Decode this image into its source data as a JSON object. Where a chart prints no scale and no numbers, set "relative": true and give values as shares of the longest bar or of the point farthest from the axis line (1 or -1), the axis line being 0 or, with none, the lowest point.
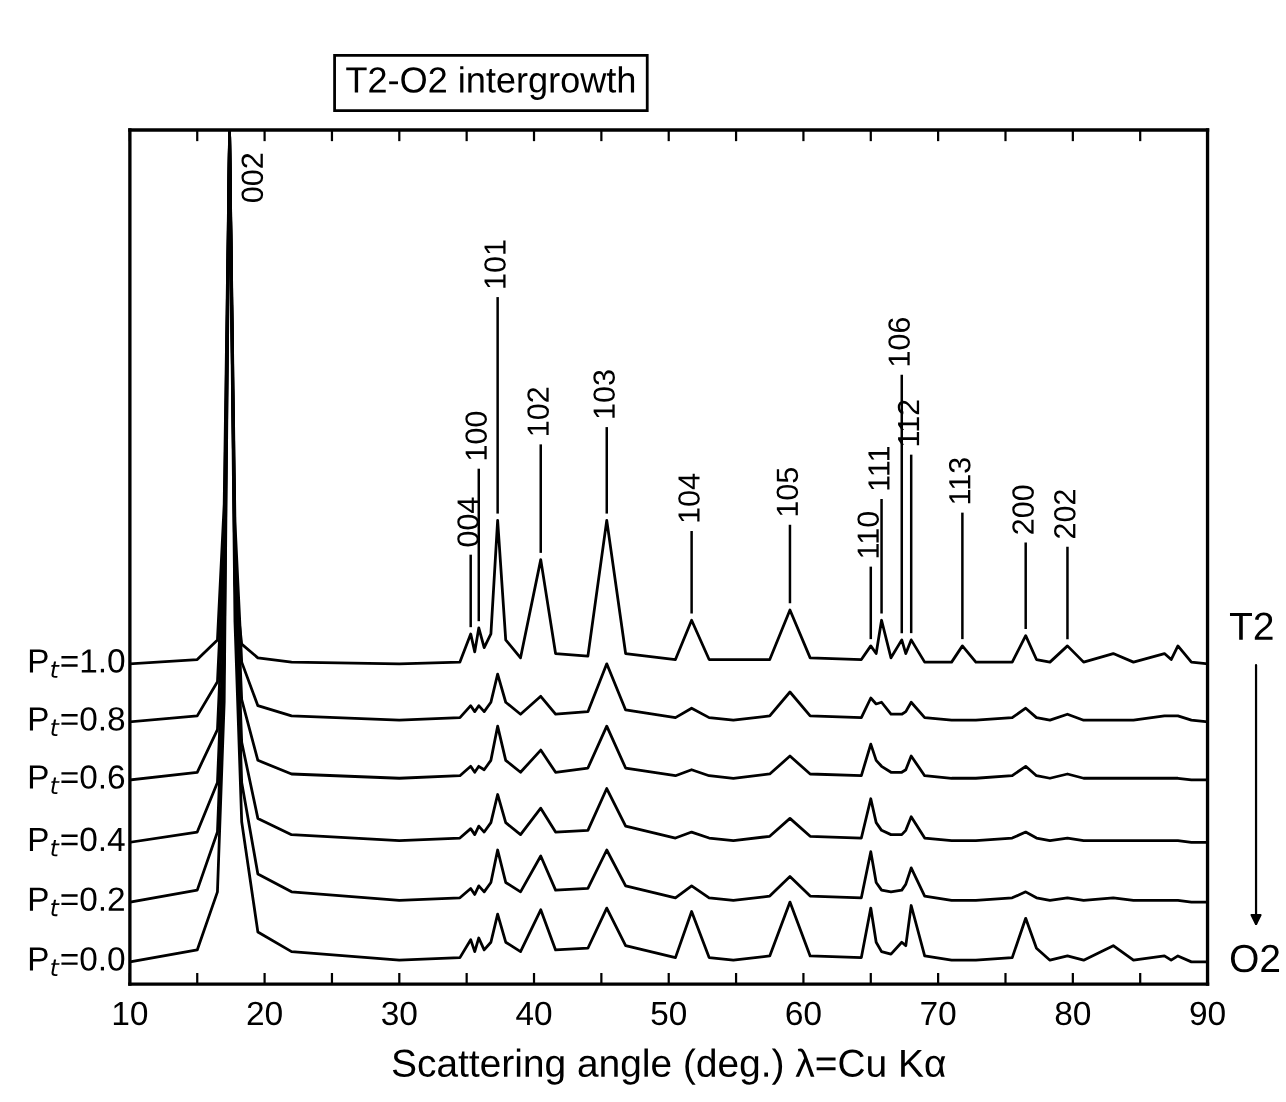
{
  "chart_data": {
    "type": "line",
    "title": "T2-O2 intergrowth",
    "xlabel": "Scattering angle (deg.) λ=Cu Kα",
    "relative": true,
    "xlim": [
      10,
      90
    ],
    "xticks": [
      10,
      {
        "value": 15,
        "label": null
      },
      20,
      {
        "value": 25,
        "label": null
      },
      30,
      {
        "value": 35,
        "label": null
      },
      40,
      {
        "value": 45,
        "label": null
      },
      50,
      {
        "value": 55,
        "label": null
      },
      60,
      {
        "value": 65,
        "label": null
      },
      70,
      {
        "value": 75,
        "label": null
      },
      80,
      {
        "value": 85,
        "label": null
      },
      90
    ],
    "x": [
      10,
      15,
      16.5,
      17.0,
      17.4,
      17.8,
      18.3,
      19.5,
      22,
      30,
      34.5,
      35.3,
      35.6,
      35.9,
      36.3,
      36.8,
      37.3,
      37.9,
      39.0,
      40.5,
      41.6,
      44.0,
      45.4,
      46.8,
      50.5,
      51.7,
      53.0,
      54.8,
      57.5,
      59.0,
      60.5,
      64.3,
      65.0,
      65.4,
      65.8,
      66.5,
      67.3,
      67.6,
      68.0,
      69.0,
      71.0,
      71.8,
      72.8,
      75.5,
      76.5,
      77.3,
      78.3,
      79.6,
      80.8,
      83.0,
      84.5,
      86.8,
      87.3,
      87.8,
      88.8,
      90
    ],
    "series": [
      {
        "name": "P$_{t}$=1.0",
        "color": "#000000",
        "values": [
          0.375,
          0.38,
          0.403,
          0.562,
          1.0,
          0.469,
          0.398,
          0.382,
          0.377,
          0.375,
          0.377,
          0.41,
          0.389,
          0.417,
          0.394,
          0.41,
          0.543,
          0.403,
          0.382,
          0.497,
          0.387,
          0.384,
          0.543,
          0.387,
          0.38,
          0.426,
          0.38,
          0.38,
          0.38,
          0.438,
          0.382,
          0.38,
          0.396,
          0.387,
          0.426,
          0.382,
          0.403,
          0.387,
          0.403,
          0.377,
          0.377,
          0.396,
          0.377,
          0.377,
          0.408,
          0.38,
          0.377,
          0.396,
          0.377,
          0.387,
          0.377,
          0.387,
          0.38,
          0.396,
          0.377,
          0.375
        ]
      },
      {
        "name": "P$_{t}$=0.8",
        "color": "#000000",
        "values": [
          0.307,
          0.314,
          0.354,
          0.518,
          1.0,
          0.541,
          0.377,
          0.326,
          0.314,
          0.309,
          0.312,
          0.326,
          0.319,
          0.326,
          0.319,
          0.33,
          0.363,
          0.33,
          0.316,
          0.337,
          0.316,
          0.319,
          0.375,
          0.321,
          0.312,
          0.323,
          0.312,
          0.309,
          0.314,
          0.342,
          0.314,
          0.312,
          0.335,
          0.328,
          0.33,
          0.316,
          0.316,
          0.319,
          0.33,
          0.312,
          0.309,
          0.309,
          0.309,
          0.312,
          0.323,
          0.312,
          0.309,
          0.316,
          0.309,
          0.309,
          0.309,
          0.314,
          0.314,
          0.314,
          0.309,
          0.307
        ]
      },
      {
        "name": "P$_{t}$=0.6",
        "color": "#000000",
        "values": [
          0.239,
          0.248,
          0.298,
          0.473,
          1.0,
          0.52,
          0.333,
          0.262,
          0.246,
          0.241,
          0.244,
          0.255,
          0.248,
          0.255,
          0.251,
          0.262,
          0.302,
          0.262,
          0.248,
          0.274,
          0.248,
          0.253,
          0.302,
          0.253,
          0.244,
          0.251,
          0.244,
          0.241,
          0.246,
          0.267,
          0.246,
          0.244,
          0.281,
          0.262,
          0.255,
          0.248,
          0.248,
          0.251,
          0.267,
          0.244,
          0.241,
          0.241,
          0.241,
          0.244,
          0.255,
          0.244,
          0.241,
          0.246,
          0.241,
          0.241,
          0.241,
          0.241,
          0.241,
          0.241,
          0.239,
          0.239
        ]
      },
      {
        "name": "P$_{t}$=0.4",
        "color": "#000000",
        "values": [
          0.166,
          0.178,
          0.236,
          0.423,
          1.0,
          0.494,
          0.283,
          0.194,
          0.175,
          0.168,
          0.171,
          0.182,
          0.175,
          0.185,
          0.178,
          0.189,
          0.222,
          0.189,
          0.175,
          0.206,
          0.178,
          0.18,
          0.229,
          0.185,
          0.171,
          0.178,
          0.171,
          0.168,
          0.173,
          0.194,
          0.173,
          0.171,
          0.217,
          0.189,
          0.18,
          0.175,
          0.175,
          0.18,
          0.196,
          0.171,
          0.168,
          0.168,
          0.168,
          0.171,
          0.178,
          0.171,
          0.168,
          0.171,
          0.168,
          0.168,
          0.168,
          0.168,
          0.168,
          0.168,
          0.166,
          0.166
        ]
      },
      {
        "name": "P$_{t}$=0.2",
        "color": "#000000",
        "values": [
          0.096,
          0.11,
          0.178,
          0.377,
          1.0,
          0.47,
          0.236,
          0.129,
          0.108,
          0.098,
          0.101,
          0.112,
          0.105,
          0.115,
          0.108,
          0.119,
          0.157,
          0.119,
          0.108,
          0.15,
          0.11,
          0.112,
          0.157,
          0.115,
          0.101,
          0.115,
          0.101,
          0.098,
          0.103,
          0.126,
          0.103,
          0.101,
          0.155,
          0.119,
          0.11,
          0.108,
          0.11,
          0.117,
          0.136,
          0.103,
          0.098,
          0.098,
          0.098,
          0.101,
          0.108,
          0.101,
          0.098,
          0.101,
          0.098,
          0.101,
          0.098,
          0.098,
          0.098,
          0.098,
          0.096,
          0.096
        ]
      },
      {
        "name": "P$_{t}$=0.0",
        "color": "#000000",
        "values": [
          0.026,
          0.04,
          0.108,
          0.33,
          1.0,
          0.424,
          0.19,
          0.061,
          0.038,
          0.028,
          0.031,
          0.052,
          0.038,
          0.054,
          0.04,
          0.049,
          0.082,
          0.049,
          0.038,
          0.087,
          0.04,
          0.042,
          0.089,
          0.045,
          0.031,
          0.085,
          0.031,
          0.028,
          0.033,
          0.096,
          0.033,
          0.031,
          0.089,
          0.049,
          0.038,
          0.035,
          0.049,
          0.045,
          0.092,
          0.033,
          0.028,
          0.028,
          0.028,
          0.031,
          0.077,
          0.042,
          0.028,
          0.033,
          0.028,
          0.045,
          0.028,
          0.033,
          0.028,
          0.033,
          0.026,
          0.026
        ]
      }
    ],
    "annotations": [
      {
        "text": "002",
        "x": 17.4,
        "y": 1.0
      },
      {
        "text": "004",
        "x": 35.3,
        "y": 0.41
      },
      {
        "text": "100",
        "x": 35.9,
        "y": 0.417
      },
      {
        "text": "101",
        "x": 37.3,
        "y": 0.543
      },
      {
        "text": "102",
        "x": 40.5,
        "y": 0.497
      },
      {
        "text": "103",
        "x": 45.4,
        "y": 0.543
      },
      {
        "text": "104",
        "x": 51.7,
        "y": 0.426
      },
      {
        "text": "105",
        "x": 59.0,
        "y": 0.438
      },
      {
        "text": "110",
        "x": 65.0,
        "y": 0.396
      },
      {
        "text": "111",
        "x": 65.8,
        "y": 0.426
      },
      {
        "text": "106",
        "x": 67.3,
        "y": 0.403
      },
      {
        "text": "112",
        "x": 68.0,
        "y": 0.403
      },
      {
        "text": "113",
        "x": 71.8,
        "y": 0.396
      },
      {
        "text": "200",
        "x": 76.5,
        "y": 0.408
      },
      {
        "text": "202",
        "x": 79.6,
        "y": 0.396
      },
      "T2",
      "O2"
    ],
    "legend": false,
    "grid": false
  }
}
